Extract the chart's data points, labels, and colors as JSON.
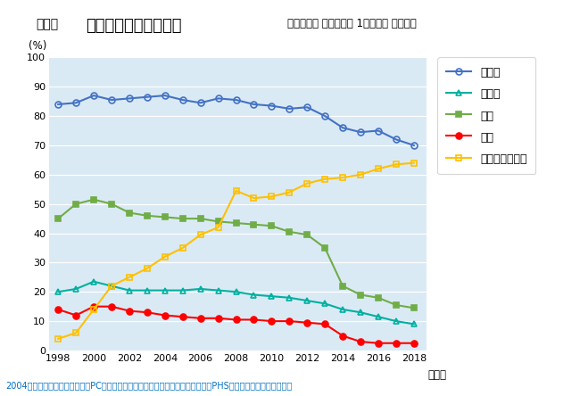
{
  "title_prefix": "図表１",
  "title_main": "主要メディアの接触率",
  "title_sub": "（個人全体 自宅内外計 1日あたり 週平均）",
  "ylabel": "(%)",
  "xlabel_suffix": "（年）",
  "bg_plot": "#daeaf5",
  "bg_fig": "#ffffff",
  "years": [
    1998,
    1999,
    2000,
    2001,
    2002,
    2003,
    2004,
    2005,
    2006,
    2007,
    2008,
    2009,
    2010,
    2011,
    2012,
    2013,
    2014,
    2015,
    2016,
    2017,
    2018
  ],
  "series": [
    {
      "name": "テレビ",
      "values": [
        84.0,
        84.5,
        87.0,
        85.5,
        86.0,
        86.5,
        87.0,
        85.5,
        84.5,
        86.0,
        85.5,
        84.0,
        83.5,
        82.5,
        83.0,
        80.0,
        76.0,
        74.5,
        75.0,
        72.0,
        70.0
      ],
      "color": "#4472c4",
      "marker": "o",
      "fillstyle": "none",
      "linewidth": 1.5,
      "markersize": 5
    },
    {
      "name": "ラジオ",
      "values": [
        20.0,
        21.0,
        23.5,
        22.0,
        20.5,
        20.5,
        20.5,
        20.5,
        21.0,
        20.5,
        20.0,
        19.0,
        18.5,
        18.0,
        17.0,
        16.0,
        14.0,
        13.0,
        11.5,
        10.0,
        9.0
      ],
      "color": "#00b0a0",
      "marker": "^",
      "fillstyle": "none",
      "linewidth": 1.5,
      "markersize": 5
    },
    {
      "name": "新聞",
      "values": [
        45.0,
        50.0,
        51.5,
        50.0,
        47.0,
        46.0,
        45.5,
        45.0,
        45.0,
        44.0,
        43.5,
        43.0,
        42.5,
        40.5,
        39.5,
        35.0,
        22.0,
        19.0,
        18.0,
        15.5,
        14.5
      ],
      "color": "#70ad47",
      "marker": "s",
      "fillstyle": "full",
      "linewidth": 1.5,
      "markersize": 5
    },
    {
      "name": "雑誌",
      "values": [
        14.0,
        12.0,
        15.0,
        15.0,
        13.5,
        13.0,
        12.0,
        11.5,
        11.0,
        11.0,
        10.5,
        10.5,
        10.0,
        10.0,
        9.5,
        9.0,
        5.0,
        3.0,
        2.5,
        2.5,
        2.5
      ],
      "color": "#ff0000",
      "marker": "o",
      "fillstyle": "full",
      "linewidth": 1.5,
      "markersize": 5
    },
    {
      "name": "インターネット",
      "values": [
        4.0,
        6.0,
        14.0,
        22.0,
        25.0,
        28.0,
        32.0,
        35.0,
        39.5,
        42.0,
        54.5,
        52.0,
        52.5,
        54.0,
        57.0,
        58.5,
        59.0,
        60.0,
        62.0,
        63.5,
        64.0
      ],
      "color": "#ffc000",
      "marker": "s",
      "fillstyle": "none",
      "linewidth": 1.5,
      "markersize": 5
    }
  ],
  "ylim": [
    0,
    100
  ],
  "yticks": [
    0,
    10,
    20,
    30,
    40,
    50,
    60,
    70,
    80,
    90,
    100
  ],
  "xticks": [
    1998,
    2000,
    2002,
    2004,
    2006,
    2008,
    2010,
    2012,
    2014,
    2016,
    2018
  ],
  "footnote": "2004年よりインターネットにはPC、タブレット、スマートフォン等（携帯電話・PHSでのゲームを含む）を含む",
  "footnote_color": "#0070c0",
  "footnote_bg": "#cce0f0"
}
